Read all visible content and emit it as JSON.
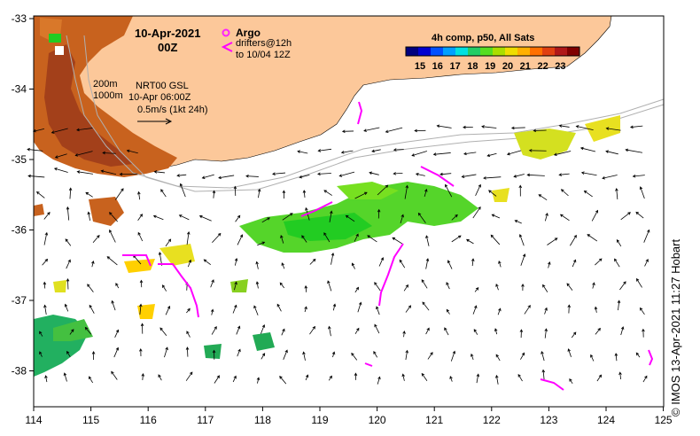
{
  "map": {
    "date": "10-Apr-2021",
    "hour": "00Z",
    "argo_label": "Argo",
    "drifters_line1": "drifters@12h",
    "drifters_line2": "to 10/04 12Z",
    "iso_200": "200m",
    "iso_1000": "1000m",
    "nrt_line1": "NRT00 GSL",
    "nrt_line2": "10-Apr 06:00Z",
    "scale_label": "0.5m/s (1kt 24h)",
    "colorbar_title": "4h comp, p50, All Sats",
    "colorbar_ticks": [
      "15",
      "16",
      "17",
      "18",
      "19",
      "20",
      "21",
      "22",
      "23"
    ],
    "credit": "©  IMOS 13-Apr-2021 11:27 Hobart",
    "x_ticks": [
      "114",
      "115",
      "116",
      "117",
      "118",
      "119",
      "120",
      "121",
      "122",
      "123",
      "124",
      "125"
    ],
    "y_ticks": [
      "-33",
      "-34",
      "-35",
      "-36",
      "-37",
      "-38"
    ],
    "colors": {
      "land": "#fcc89a",
      "warm": "#c25a1a",
      "argo": "#ff22ff",
      "drifter": "#ff00ff"
    }
  }
}
